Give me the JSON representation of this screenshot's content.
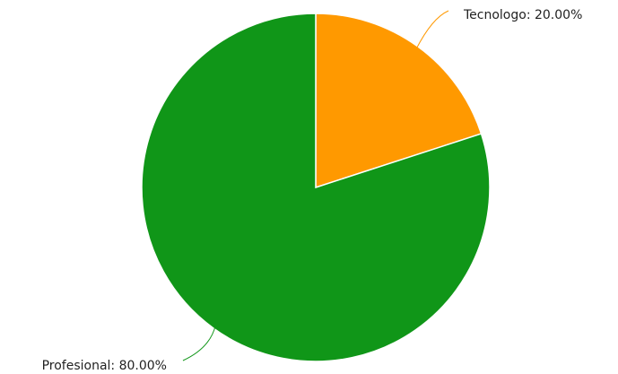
{
  "chart_data": {
    "type": "pie",
    "values": [
      20,
      80
    ],
    "value_labels": [
      "Tecnologo: 20.00%",
      "Profesional: 80.00%"
    ],
    "colors": [
      "#ff9900",
      "#109618"
    ]
  }
}
